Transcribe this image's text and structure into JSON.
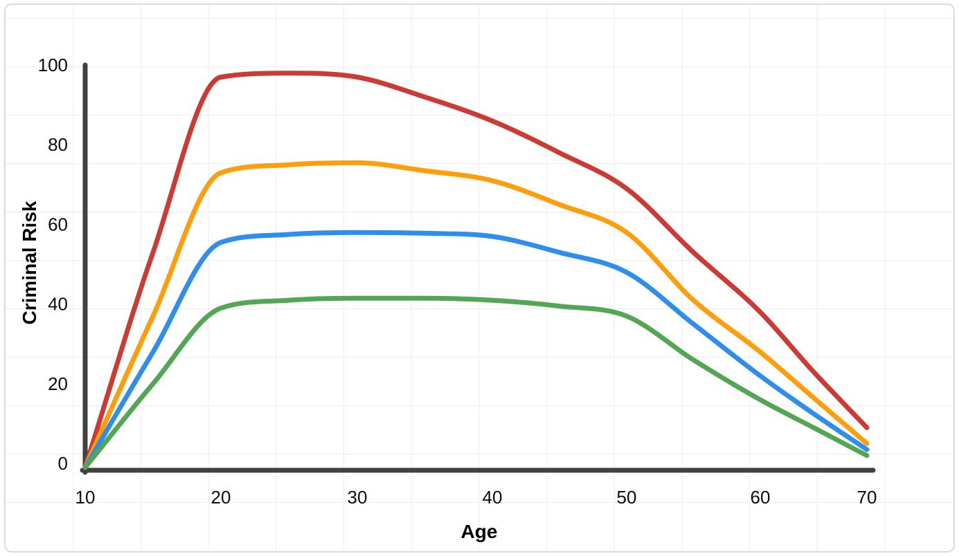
{
  "chart_data": {
    "type": "line",
    "title": "",
    "xlabel": "Age",
    "ylabel": "Criminal Risk",
    "x": [
      10,
      15,
      20,
      25,
      30,
      35,
      40,
      45,
      50,
      55,
      60,
      65,
      70
    ],
    "x_ticks": [
      10,
      20,
      30,
      40,
      50,
      60,
      70
    ],
    "x_tick_labels": [
      "10",
      "20",
      "30",
      "40",
      "50",
      "60",
      "70"
    ],
    "y_ticks": [
      0,
      20,
      40,
      60,
      80,
      100
    ],
    "y_tick_labels": [
      "0",
      "20",
      "40",
      "60",
      "80",
      "100"
    ],
    "xlim": [
      10,
      70
    ],
    "ylim": [
      0,
      100
    ],
    "grid": "faint full-canvas background grid",
    "legend_position": "none",
    "series": [
      {
        "name": "red",
        "color": "#cc3b33",
        "values": [
          0,
          54,
          98,
          99,
          98,
          93,
          87,
          79,
          70,
          54,
          39,
          24,
          10
        ]
      },
      {
        "name": "orange",
        "color": "#ff9d0a",
        "values": [
          0,
          38,
          74,
          76,
          76.5,
          74.5,
          72,
          66,
          59,
          42,
          29,
          17.5,
          6
        ]
      },
      {
        "name": "blue",
        "color": "#2e8ded",
        "values": [
          0,
          29,
          56.5,
          58.5,
          59,
          58.8,
          58,
          54,
          49,
          36,
          23,
          13.5,
          4.5
        ]
      },
      {
        "name": "green",
        "color": "#53a653",
        "values": [
          0,
          21,
          40,
          42,
          42.5,
          42.5,
          42,
          40.5,
          38,
          27,
          17,
          10,
          3
        ]
      }
    ],
    "axis_color": "#414141",
    "grid_color": "#ececec",
    "border_color": "#d8dadd"
  }
}
